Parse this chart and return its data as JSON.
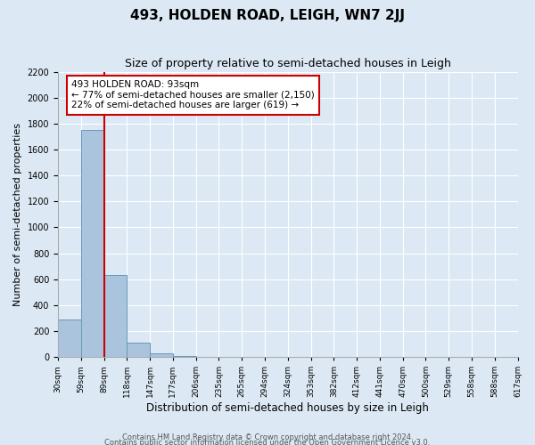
{
  "title": "493, HOLDEN ROAD, LEIGH, WN7 2JJ",
  "subtitle": "Size of property relative to semi-detached houses in Leigh",
  "xlabel": "Distribution of semi-detached houses by size in Leigh",
  "ylabel": "Number of semi-detached properties",
  "bar_values": [
    290,
    1750,
    635,
    110,
    25,
    5,
    0,
    0,
    0,
    0,
    0,
    0,
    0,
    0,
    0,
    0,
    0,
    0,
    0,
    0
  ],
  "bin_labels": [
    "30sqm",
    "59sqm",
    "89sqm",
    "118sqm",
    "147sqm",
    "177sqm",
    "206sqm",
    "235sqm",
    "265sqm",
    "294sqm",
    "324sqm",
    "353sqm",
    "382sqm",
    "412sqm",
    "441sqm",
    "470sqm",
    "500sqm",
    "529sqm",
    "558sqm",
    "588sqm",
    "617sqm"
  ],
  "bar_color": "#aac4dd",
  "bar_edge_color": "#6699bb",
  "property_line_x": 2,
  "annotation_title": "493 HOLDEN ROAD: 93sqm",
  "annotation_line1": "← 77% of semi-detached houses are smaller (2,150)",
  "annotation_line2": "22% of semi-detached houses are larger (619) →",
  "annotation_box_color": "#ffffff",
  "annotation_box_edge_color": "#cc0000",
  "property_line_color": "#cc0000",
  "ylim": [
    0,
    2200
  ],
  "yticks": [
    0,
    200,
    400,
    600,
    800,
    1000,
    1200,
    1400,
    1600,
    1800,
    2000,
    2200
  ],
  "footer1": "Contains HM Land Registry data © Crown copyright and database right 2024.",
  "footer2": "Contains public sector information licensed under the Open Government Licence v3.0.",
  "background_color": "#dce9f5",
  "plot_background_color": "#dce9f5",
  "grid_color": "#ffffff"
}
